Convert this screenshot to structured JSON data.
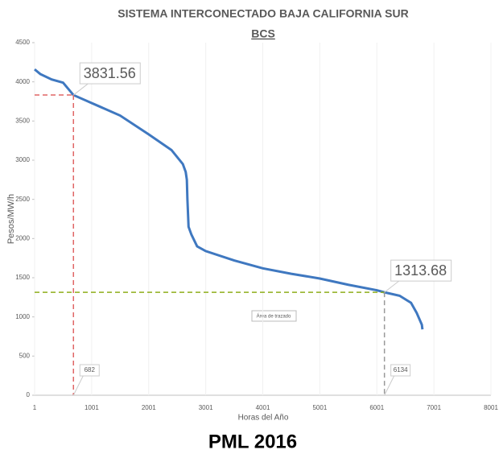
{
  "chart_data": {
    "type": "line",
    "title": "SISTEMA INTERCONECTADO BAJA CALIFORNIA SUR",
    "subtitle": "BCS",
    "y_label": "Pesos/MW/h",
    "x_label": "Horas del Año",
    "footer": "PML 2016",
    "plot_area_label": "Área de trazado",
    "x": [
      1,
      100,
      300,
      500,
      682,
      1000,
      1500,
      2000,
      2400,
      2600,
      2650,
      2670,
      2680,
      2700,
      2750,
      2850,
      3000,
      3500,
      4000,
      4500,
      5000,
      5500,
      6000,
      6134,
      6400,
      6600,
      6700,
      6790,
      6800
    ],
    "series": [
      {
        "color": "#3f78c0",
        "values": [
          4160,
          4100,
          4030,
          3990,
          3831.56,
          3730,
          3570,
          3330,
          3130,
          2950,
          2850,
          2750,
          2500,
          2150,
          2050,
          1900,
          1840,
          1720,
          1620,
          1550,
          1490,
          1410,
          1340,
          1313.68,
          1270,
          1180,
          1050,
          900,
          840
        ]
      }
    ],
    "markers": [
      {
        "x": 682,
        "y": 3831.56,
        "hcolor": "#e06666",
        "vcolor": "#e06666"
      },
      {
        "x": 6134,
        "y": 1313.68,
        "hcolor": "#8fae1b",
        "vcolor": "#999999"
      }
    ],
    "xlim": [
      1,
      8001
    ],
    "xticks": [
      1,
      1001,
      2001,
      3001,
      4001,
      5001,
      6001,
      7001,
      8001
    ],
    "ylim": [
      0,
      4500
    ],
    "yticks": [
      0,
      500,
      1000,
      1500,
      2000,
      2500,
      3000,
      3500,
      4000,
      4500
    ]
  }
}
